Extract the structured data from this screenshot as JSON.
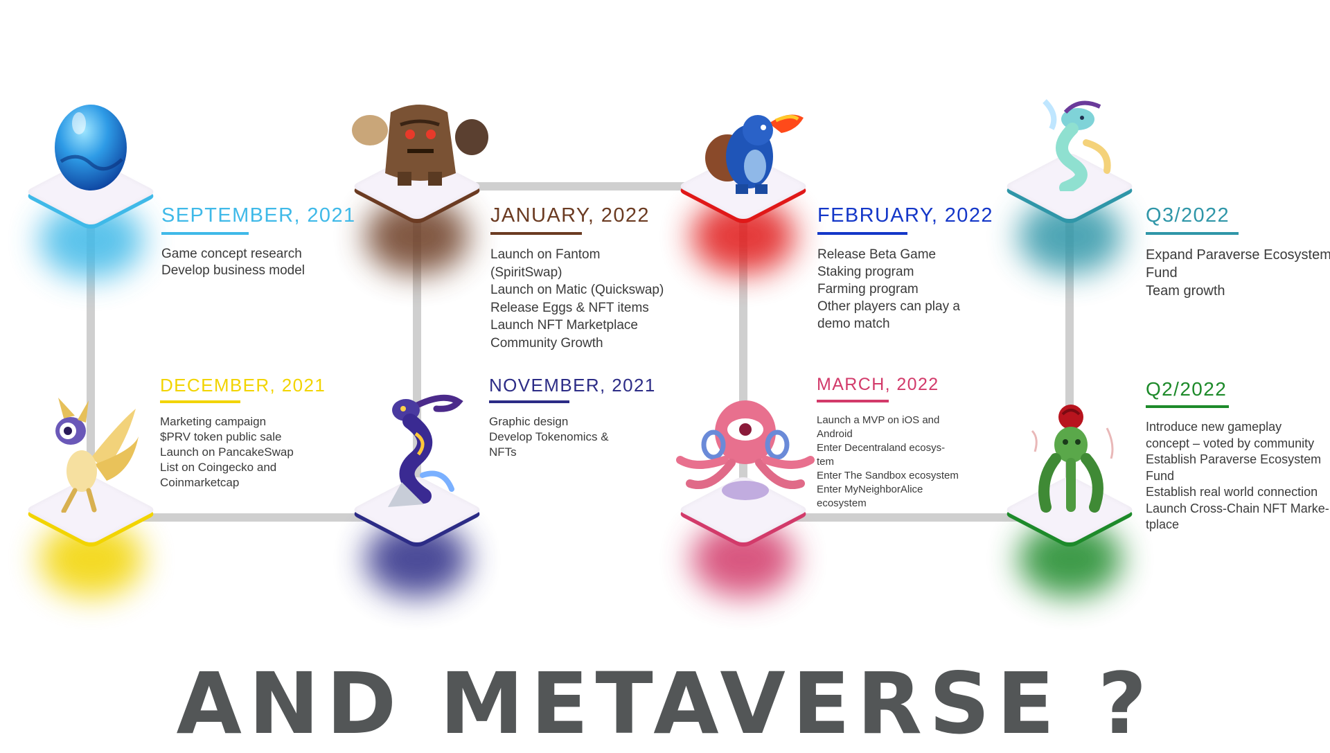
{
  "colors": {
    "line": "#cfcfcf",
    "sep2021": "#3fb9e8",
    "jan2022": "#6b3b22",
    "feb2022": "#1437c8",
    "q3_2022": "#2f96a8",
    "dec2021": "#f2d400",
    "nov2021": "#2c2c86",
    "mar2022": "#d23a6a",
    "q2_2022": "#1d8a2a",
    "heading": "#535657"
  },
  "milestones": {
    "sep2021": {
      "title": "SEPTEMBER, 2021",
      "items": [
        "Game concept research",
        "Develop business model"
      ]
    },
    "jan2022": {
      "title": "JANUARY, 2022",
      "items": [
        "Launch on Fantom",
        "(SpiritSwap)",
        "Launch on Matic (Quickswap)",
        "Release Eggs & NFT items",
        "Launch NFT Marketplace",
        "Community Growth"
      ]
    },
    "feb2022": {
      "title": "FEBRUARY, 2022",
      "items": [
        "Release Beta Game",
        "Staking program",
        "Farming program",
        "Other players can play a",
        "demo match"
      ]
    },
    "q3_2022": {
      "title": "Q3/2022",
      "items": [
        "Expand Paraverse Ecosystem",
        "Fund",
        "Team growth"
      ]
    },
    "dec2021": {
      "title": "DECEMBER, 2021",
      "items": [
        "Marketing campaign",
        "$PRV token public sale",
        "Launch on PancakeSwap",
        "List on Coingecko and",
        "Coinmarketcap"
      ]
    },
    "nov2021": {
      "title": "NOVEMBER, 2021",
      "items": [
        "Graphic design",
        "Develop Tokenomics &",
        "NFTs"
      ]
    },
    "mar2022": {
      "title": "MARCH, 2022",
      "items": [
        "Launch a MVP on iOS and",
        "Android",
        "Enter Decentraland ecosys-",
        "tem",
        "Enter The Sandbox ecosystem",
        "Enter MyNeighborAlice",
        "ecosystem"
      ]
    },
    "q2_2022": {
      "title": "Q2/2022",
      "items": [
        "Introduce new gameplay",
        "concept – voted by community",
        "Establish Paraverse Ecosystem",
        "Fund",
        "Establish real world connection",
        "Launch Cross-Chain NFT Marke-",
        "tplace"
      ]
    }
  },
  "creatures": {
    "sep2021": "blue-egg-icon",
    "jan2022": "rock-golem-icon",
    "feb2022": "fire-dragon-icon",
    "q3_2022": "water-serpent-icon",
    "dec2021": "golden-fox-icon",
    "nov2021": "violet-seahorse-icon",
    "mar2022": "pink-octopus-icon",
    "q2_2022": "rose-plant-icon"
  },
  "headline": "AND METAVERSE ?"
}
